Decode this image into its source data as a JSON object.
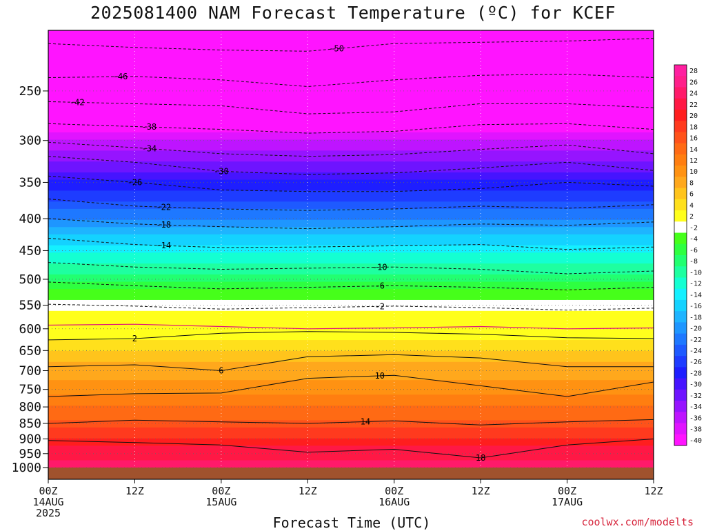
{
  "title": "2025081400 NAM Forecast Temperature (ºC) for KCEF",
  "x_axis_label": "Forecast Time (UTC)",
  "credit": "coolwx.com/modelts",
  "chart_data": {
    "type": "heatmap",
    "title": "2025081400 NAM Forecast Temperature (ºC) for KCEF",
    "xlabel": "Forecast Time (UTC)",
    "x_ticks": [
      {
        "hour": 0,
        "lines": [
          "00Z",
          "14AUG",
          "2025"
        ]
      },
      {
        "hour": 12,
        "lines": [
          "12Z"
        ]
      },
      {
        "hour": 24,
        "lines": [
          "00Z",
          "15AUG"
        ]
      },
      {
        "hour": 36,
        "lines": [
          "12Z"
        ]
      },
      {
        "hour": 48,
        "lines": [
          "00Z",
          "16AUG"
        ]
      },
      {
        "hour": 60,
        "lines": [
          "12Z"
        ]
      },
      {
        "hour": 72,
        "lines": [
          "00Z",
          "17AUG"
        ]
      },
      {
        "hour": 84,
        "lines": [
          "12Z"
        ]
      }
    ],
    "xlim_hours": [
      0,
      84
    ],
    "y_ticks": [
      250,
      300,
      350,
      400,
      450,
      500,
      550,
      600,
      650,
      700,
      750,
      800,
      850,
      900,
      950,
      1000
    ],
    "ylim_hpa": [
      200,
      1000
    ],
    "y_scale": "log",
    "colorbar_labels": [
      28,
      26,
      24,
      22,
      20,
      18,
      16,
      14,
      12,
      10,
      8,
      6,
      4,
      2,
      -2,
      -4,
      -6,
      -8,
      -10,
      -12,
      -14,
      -16,
      -18,
      -20,
      -22,
      -24,
      -26,
      -28,
      -30,
      -32,
      -34,
      -36,
      -38,
      -40
    ],
    "colorbar_colors": [
      "#ff1fa0",
      "#ff1f8a",
      "#ff1a6a",
      "#ff1845",
      "#ff1e1e",
      "#ff3a1e",
      "#ff521a",
      "#ff6a14",
      "#ff7e10",
      "#ff9212",
      "#ffa81c",
      "#ffc41c",
      "#ffe01c",
      "#ffff1c",
      "#ffffff",
      "#46ff1a",
      "#2eff40",
      "#22ff70",
      "#1effa0",
      "#14ffd2",
      "#14f0ff",
      "#14d2ff",
      "#1eb4ff",
      "#1e96ff",
      "#1e78ff",
      "#1e5aff",
      "#1e3cff",
      "#1e1eff",
      "#4614ff",
      "#6e14ff",
      "#9614ff",
      "#be14ff",
      "#e014ff",
      "#ff14ff"
    ],
    "profile": [
      {
        "p": 200,
        "t": -52
      },
      {
        "p": 230,
        "t": -49
      },
      {
        "p": 250,
        "t": -45
      },
      {
        "p": 280,
        "t": -41
      },
      {
        "p": 300,
        "t": -37
      },
      {
        "p": 330,
        "t": -32
      },
      {
        "p": 360,
        "t": -27
      },
      {
        "p": 400,
        "t": -21
      },
      {
        "p": 440,
        "t": -15
      },
      {
        "p": 480,
        "t": -10
      },
      {
        "p": 520,
        "t": -5
      },
      {
        "p": 560,
        "t": 0
      },
      {
        "p": 590,
        "t": 1
      },
      {
        "p": 625,
        "t": 3
      },
      {
        "p": 680,
        "t": 7
      },
      {
        "p": 740,
        "t": 10
      },
      {
        "p": 820,
        "t": 14
      },
      {
        "p": 880,
        "t": 18
      },
      {
        "p": 940,
        "t": 22
      },
      {
        "p": 1000,
        "t": 24
      }
    ],
    "contours": [
      {
        "label": "-50",
        "style": "dashed",
        "points": [
          [
            0,
            210
          ],
          [
            12,
            213
          ],
          [
            24,
            215
          ],
          [
            36,
            216
          ],
          [
            48,
            210
          ],
          [
            60,
            209
          ],
          [
            72,
            208
          ],
          [
            84,
            206
          ]
        ],
        "label_hour": 40
      },
      {
        "label": "-46",
        "style": "dashed",
        "points": [
          [
            0,
            238
          ],
          [
            12,
            237
          ],
          [
            24,
            240
          ],
          [
            36,
            246
          ],
          [
            48,
            240
          ],
          [
            60,
            236
          ],
          [
            72,
            235
          ],
          [
            84,
            238
          ]
        ],
        "label_hour": 10
      },
      {
        "label": "-42",
        "style": "dashed",
        "points": [
          [
            0,
            260
          ],
          [
            12,
            262
          ],
          [
            24,
            264
          ],
          [
            36,
            272
          ],
          [
            48,
            270
          ],
          [
            60,
            262
          ],
          [
            72,
            262
          ],
          [
            84,
            266
          ]
        ],
        "label_hour": 4
      },
      {
        "label": "-38",
        "style": "dashed",
        "points": [
          [
            0,
            282
          ],
          [
            12,
            285
          ],
          [
            24,
            288
          ],
          [
            36,
            292
          ],
          [
            48,
            290
          ],
          [
            60,
            283
          ],
          [
            72,
            282
          ],
          [
            84,
            288
          ]
        ],
        "label_hour": 14
      },
      {
        "label": "-34",
        "style": "dashed",
        "points": [
          [
            0,
            302
          ],
          [
            12,
            308
          ],
          [
            24,
            315
          ],
          [
            36,
            318
          ],
          [
            48,
            316
          ],
          [
            60,
            310
          ],
          [
            72,
            305
          ],
          [
            84,
            315
          ]
        ],
        "label_hour": 14
      },
      {
        "label": "-30",
        "style": "dashed",
        "points": [
          [
            0,
            318
          ],
          [
            12,
            325
          ],
          [
            24,
            336
          ],
          [
            36,
            340
          ],
          [
            48,
            338
          ],
          [
            60,
            332
          ],
          [
            72,
            325
          ],
          [
            84,
            335
          ]
        ],
        "label_hour": 24
      },
      {
        "label": "-26",
        "style": "dashed",
        "points": [
          [
            0,
            342
          ],
          [
            12,
            350
          ],
          [
            24,
            360
          ],
          [
            36,
            362
          ],
          [
            48,
            362
          ],
          [
            60,
            358
          ],
          [
            72,
            350
          ],
          [
            84,
            355
          ]
        ],
        "label_hour": 12
      },
      {
        "label": "-22",
        "style": "dashed",
        "points": [
          [
            0,
            372
          ],
          [
            12,
            382
          ],
          [
            24,
            386
          ],
          [
            36,
            388
          ],
          [
            48,
            386
          ],
          [
            60,
            382
          ],
          [
            72,
            385
          ],
          [
            84,
            380
          ]
        ],
        "label_hour": 16
      },
      {
        "label": "-18",
        "style": "dashed",
        "points": [
          [
            0,
            400
          ],
          [
            12,
            408
          ],
          [
            24,
            412
          ],
          [
            36,
            415
          ],
          [
            48,
            412
          ],
          [
            60,
            408
          ],
          [
            72,
            410
          ],
          [
            84,
            405
          ]
        ],
        "label_hour": 16
      },
      {
        "label": "-14",
        "style": "dashed",
        "points": [
          [
            0,
            430
          ],
          [
            12,
            440
          ],
          [
            24,
            445
          ],
          [
            36,
            444
          ],
          [
            48,
            442
          ],
          [
            60,
            440
          ],
          [
            72,
            448
          ],
          [
            84,
            444
          ]
        ],
        "label_hour": 16
      },
      {
        "label": "-10",
        "style": "dashed",
        "points": [
          [
            0,
            470
          ],
          [
            12,
            478
          ],
          [
            24,
            482
          ],
          [
            36,
            480
          ],
          [
            48,
            478
          ],
          [
            60,
            482
          ],
          [
            72,
            490
          ],
          [
            84,
            485
          ]
        ],
        "label_hour": 46
      },
      {
        "label": "-6",
        "style": "dashed",
        "points": [
          [
            0,
            505
          ],
          [
            12,
            512
          ],
          [
            24,
            518
          ],
          [
            36,
            515
          ],
          [
            48,
            512
          ],
          [
            60,
            515
          ],
          [
            72,
            520
          ],
          [
            84,
            515
          ]
        ],
        "label_hour": 46
      },
      {
        "label": "-2",
        "style": "dashed",
        "points": [
          [
            0,
            548
          ],
          [
            12,
            552
          ],
          [
            24,
            558
          ],
          [
            36,
            555
          ],
          [
            48,
            552
          ],
          [
            60,
            555
          ],
          [
            72,
            560
          ],
          [
            84,
            556
          ]
        ],
        "label_hour": 46
      },
      {
        "label": "2",
        "style": "solid",
        "points": [
          [
            0,
            625
          ],
          [
            12,
            622
          ],
          [
            24,
            610
          ],
          [
            36,
            606
          ],
          [
            48,
            608
          ],
          [
            60,
            612
          ],
          [
            72,
            620
          ],
          [
            84,
            622
          ]
        ],
        "label_hour": 12
      },
      {
        "label": "6",
        "style": "solid",
        "points": [
          [
            0,
            690
          ],
          [
            12,
            685
          ],
          [
            24,
            700
          ],
          [
            36,
            665
          ],
          [
            48,
            660
          ],
          [
            60,
            668
          ],
          [
            72,
            690
          ],
          [
            84,
            690
          ]
        ],
        "label_hour": 24
      },
      {
        "label": "10",
        "style": "solid",
        "points": [
          [
            0,
            770
          ],
          [
            12,
            762
          ],
          [
            24,
            760
          ],
          [
            36,
            720
          ],
          [
            48,
            712
          ],
          [
            60,
            740
          ],
          [
            72,
            770
          ],
          [
            84,
            730
          ]
        ],
        "label_hour": 46
      },
      {
        "label": "14",
        "style": "solid",
        "points": [
          [
            0,
            850
          ],
          [
            12,
            840
          ],
          [
            24,
            845
          ],
          [
            36,
            850
          ],
          [
            48,
            842
          ],
          [
            60,
            855
          ],
          [
            72,
            845
          ],
          [
            84,
            838
          ]
        ],
        "label_hour": 44
      },
      {
        "label": "18",
        "style": "solid",
        "points": [
          [
            0,
            905
          ],
          [
            12,
            912
          ],
          [
            24,
            920
          ],
          [
            36,
            945
          ],
          [
            48,
            935
          ],
          [
            60,
            965
          ],
          [
            72,
            920
          ],
          [
            84,
            900
          ]
        ],
        "label_hour": 60
      }
    ],
    "freezing_line": {
      "label": "0",
      "points": [
        [
          0,
          592
        ],
        [
          12,
          590
        ],
        [
          24,
          595
        ],
        [
          36,
          600
        ],
        [
          48,
          598
        ],
        [
          60,
          595
        ],
        [
          72,
          600
        ],
        [
          84,
          598
        ]
      ]
    },
    "ground_band_hpa": [
      1000,
      1010
    ]
  }
}
